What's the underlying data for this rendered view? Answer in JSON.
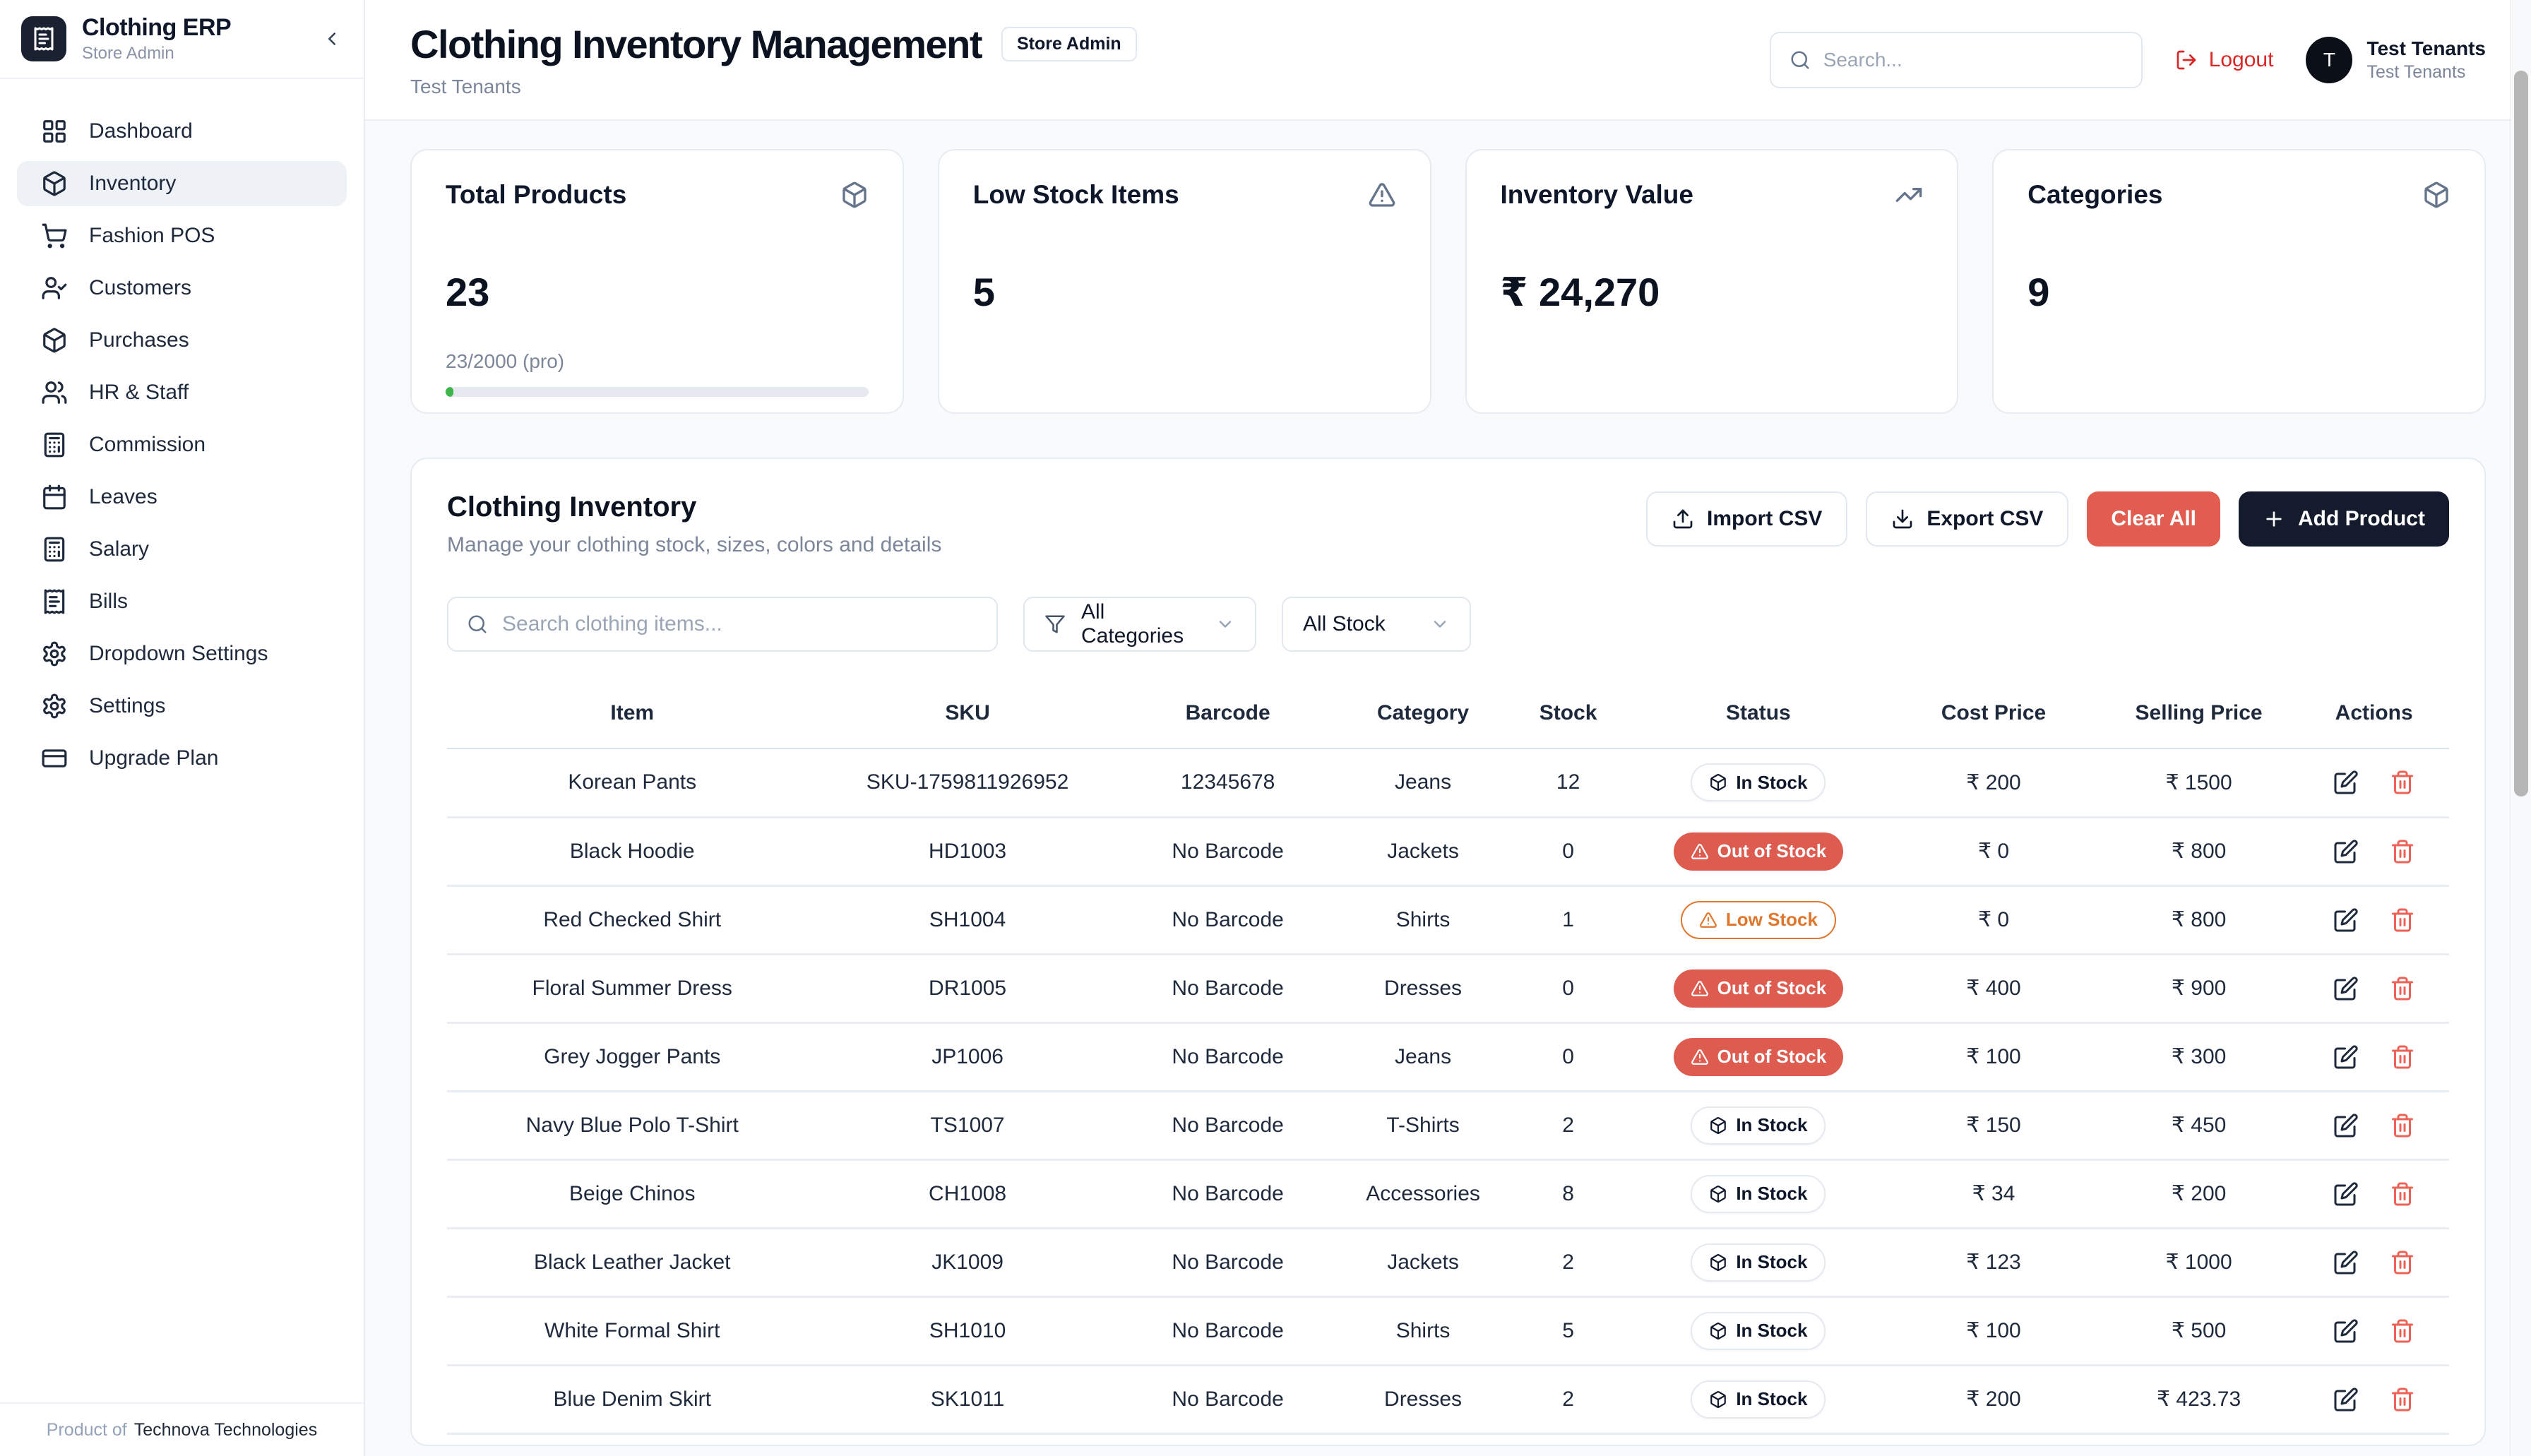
{
  "sidebar": {
    "app_name": "Clothing ERP",
    "app_subtitle": "Store Admin",
    "items": [
      {
        "label": "Dashboard",
        "icon": "layout-grid",
        "active": false
      },
      {
        "label": "Inventory",
        "icon": "package",
        "active": true
      },
      {
        "label": "Fashion POS",
        "icon": "shopping-cart",
        "active": false
      },
      {
        "label": "Customers",
        "icon": "user-check",
        "active": false
      },
      {
        "label": "Purchases",
        "icon": "package",
        "active": false
      },
      {
        "label": "HR & Staff",
        "icon": "users",
        "active": false
      },
      {
        "label": "Commission",
        "icon": "calculator",
        "active": false
      },
      {
        "label": "Leaves",
        "icon": "calendar",
        "active": false
      },
      {
        "label": "Salary",
        "icon": "calculator",
        "active": false
      },
      {
        "label": "Bills",
        "icon": "receipt",
        "active": false
      },
      {
        "label": "Dropdown Settings",
        "icon": "gear",
        "active": false
      },
      {
        "label": "Settings",
        "icon": "gear",
        "active": false
      },
      {
        "label": "Upgrade Plan",
        "icon": "credit-card",
        "active": false
      }
    ],
    "footer_prefix": "Product of",
    "footer_company": "Technova Technologies"
  },
  "header": {
    "title": "Clothing Inventory Management",
    "badge": "Store Admin",
    "subtitle": "Test Tenants",
    "search_placeholder": "Search...",
    "logout_label": "Logout",
    "user": {
      "initial": "T",
      "name": "Test Tenants",
      "role": "Test Tenants"
    }
  },
  "stats": [
    {
      "title": "Total Products",
      "icon": "package",
      "value": "23",
      "sub": "23/2000 (pro)",
      "progress_pct": 1.15
    },
    {
      "title": "Low Stock Items",
      "icon": "alert-triangle",
      "value": "5"
    },
    {
      "title": "Inventory Value",
      "icon": "trending-up",
      "value": "₹ 24,270"
    },
    {
      "title": "Categories",
      "icon": "package",
      "value": "9"
    }
  ],
  "inventory": {
    "title": "Clothing Inventory",
    "subtitle": "Manage your clothing stock, sizes, colors and details",
    "buttons": [
      {
        "id": "import-csv",
        "label": "Import CSV",
        "icon": "upload",
        "style": "outline"
      },
      {
        "id": "export-csv",
        "label": "Export CSV",
        "icon": "download",
        "style": "outline"
      },
      {
        "id": "clear-all",
        "label": "Clear All",
        "icon": null,
        "style": "danger"
      },
      {
        "id": "add-product",
        "label": "Add Product",
        "icon": "plus",
        "style": "dark"
      }
    ],
    "search_placeholder": "Search clothing items...",
    "category_filter": {
      "label": "All Categories",
      "icon": "filter"
    },
    "stock_filter": {
      "label": "All Stock"
    },
    "columns": [
      "Item",
      "SKU",
      "Barcode",
      "Category",
      "Stock",
      "Status",
      "Cost Price",
      "Selling Price",
      "Actions"
    ],
    "row_actions": [
      {
        "name": "edit",
        "icon": "edit"
      },
      {
        "name": "delete",
        "icon": "trash"
      }
    ],
    "rows": [
      {
        "item": "Korean Pants",
        "sku": "SKU-1759811926952",
        "barcode": "12345678",
        "category": "Jeans",
        "stock": "12",
        "status": "In Stock",
        "cost": "₹ 200",
        "price": "₹ 1500"
      },
      {
        "item": "Black Hoodie",
        "sku": "HD1003",
        "barcode": "No Barcode",
        "category": "Jackets",
        "stock": "0",
        "status": "Out of Stock",
        "cost": "₹ 0",
        "price": "₹ 800"
      },
      {
        "item": "Red Checked Shirt",
        "sku": "SH1004",
        "barcode": "No Barcode",
        "category": "Shirts",
        "stock": "1",
        "status": "Low Stock",
        "cost": "₹ 0",
        "price": "₹ 800"
      },
      {
        "item": "Floral Summer Dress",
        "sku": "DR1005",
        "barcode": "No Barcode",
        "category": "Dresses",
        "stock": "0",
        "status": "Out of Stock",
        "cost": "₹ 400",
        "price": "₹ 900"
      },
      {
        "item": "Grey Jogger Pants",
        "sku": "JP1006",
        "barcode": "No Barcode",
        "category": "Jeans",
        "stock": "0",
        "status": "Out of Stock",
        "cost": "₹ 100",
        "price": "₹ 300"
      },
      {
        "item": "Navy Blue Polo T-Shirt",
        "sku": "TS1007",
        "barcode": "No Barcode",
        "category": "T-Shirts",
        "stock": "2",
        "status": "In Stock",
        "cost": "₹ 150",
        "price": "₹ 450"
      },
      {
        "item": "Beige Chinos",
        "sku": "CH1008",
        "barcode": "No Barcode",
        "category": "Accessories",
        "stock": "8",
        "status": "In Stock",
        "cost": "₹ 34",
        "price": "₹ 200"
      },
      {
        "item": "Black Leather Jacket",
        "sku": "JK1009",
        "barcode": "No Barcode",
        "category": "Jackets",
        "stock": "2",
        "status": "In Stock",
        "cost": "₹ 123",
        "price": "₹ 1000"
      },
      {
        "item": "White Formal Shirt",
        "sku": "SH1010",
        "barcode": "No Barcode",
        "category": "Shirts",
        "stock": "5",
        "status": "In Stock",
        "cost": "₹ 100",
        "price": "₹ 500"
      },
      {
        "item": "Blue Denim Skirt",
        "sku": "SK1011",
        "barcode": "No Barcode",
        "category": "Dresses",
        "stock": "2",
        "status": "In Stock",
        "cost": "₹ 200",
        "price": "₹ 423.73"
      }
    ]
  },
  "colors": {
    "danger": "#e25c50",
    "dark_button": "#141b2c",
    "logout_red": "#dc2626",
    "low_stock_orange": "#df762c",
    "out_of_stock_red": "#dd5b4f",
    "progress_green": "#3cb54a",
    "accent_text": "#0f172a",
    "muted_text": "#7c8699"
  }
}
